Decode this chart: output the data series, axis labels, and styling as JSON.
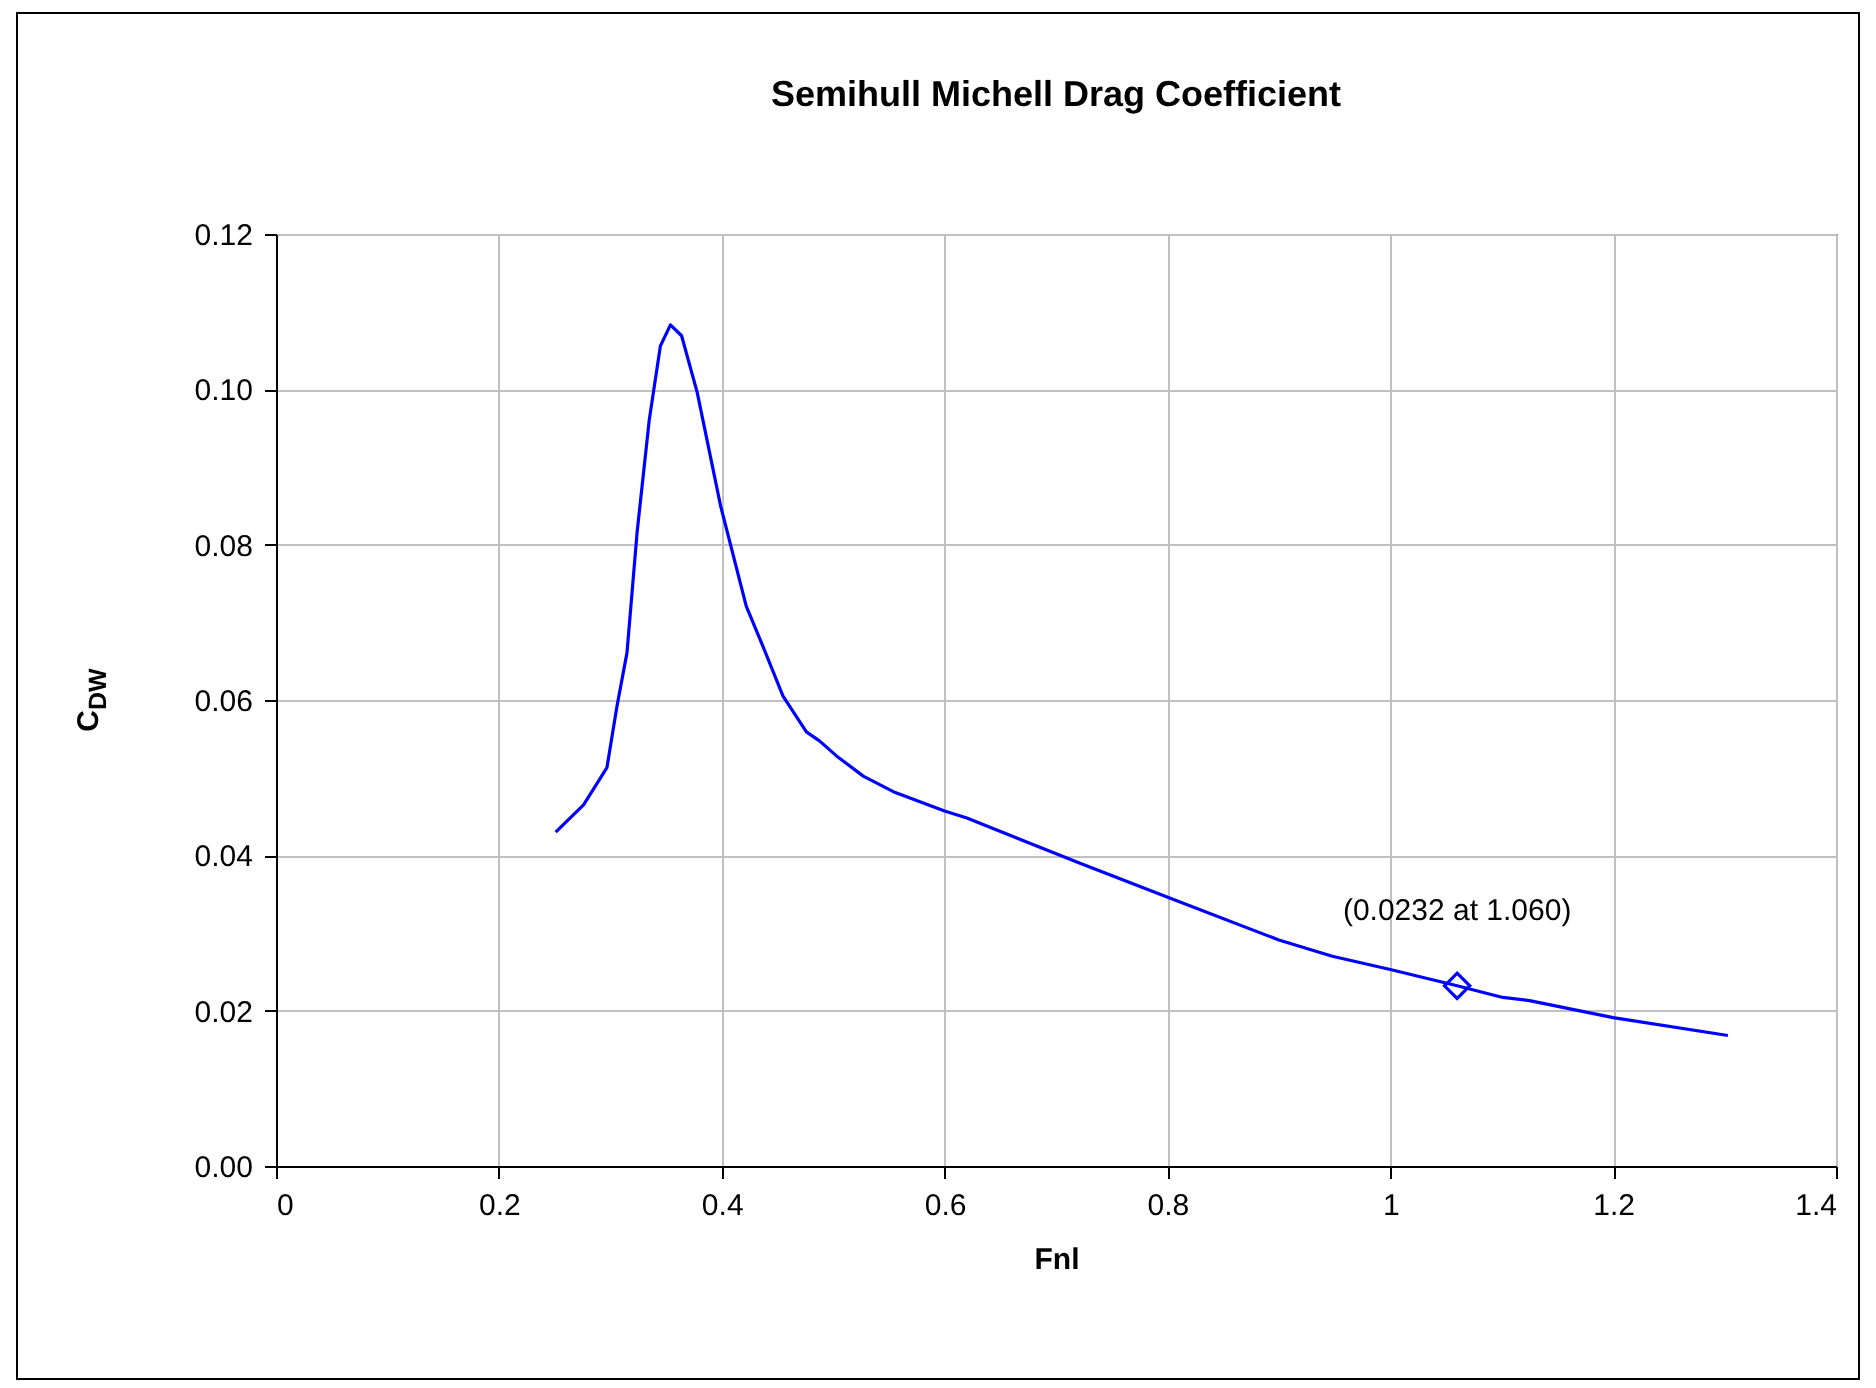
{
  "chart_data": {
    "type": "line",
    "title": "Semihull Michell Drag Coefficient",
    "xlabel": "Fnl",
    "ylabel": "C$_{DW}$",
    "xlim": [
      0,
      1.4
    ],
    "xticks": [
      0,
      0.2,
      0.4,
      0.6,
      0.8,
      1,
      1.2,
      1.4
    ],
    "ylim": [
      0,
      0.12
    ],
    "yticks": [
      {
        "value": 0,
        "label": "0.00"
      },
      {
        "value": 0.02,
        "label": "0.02"
      },
      {
        "value": 0.04,
        "label": "0.04"
      },
      {
        "value": 0.06,
        "label": "0.06"
      },
      {
        "value": 0.08,
        "label": "0.08"
      },
      {
        "value": 0.1,
        "label": "0.10"
      },
      {
        "value": 0.12,
        "label": "0.12"
      }
    ],
    "grid": true,
    "line_style": "solid",
    "series": [
      {
        "color": "#0000ff",
        "marker": "none",
        "x": [
          0.251,
          0.276,
          0.297,
          0.306,
          0.315,
          0.324,
          0.335,
          0.345,
          0.354,
          0.364,
          0.378,
          0.399,
          0.422,
          0.437,
          0.455,
          0.476,
          0.488,
          0.503,
          0.527,
          0.554,
          0.6,
          0.62,
          0.721,
          0.802,
          0.9,
          0.948,
          1.0,
          1.06,
          1.101,
          1.125,
          1.2,
          1.303
        ],
        "values": [
          0.043,
          0.0465,
          0.0513,
          0.0592,
          0.0661,
          0.0815,
          0.0961,
          0.1056,
          0.1083,
          0.1069,
          0.0996,
          0.085,
          0.0721,
          0.0669,
          0.0605,
          0.0559,
          0.0547,
          0.0528,
          0.0502,
          0.0482,
          0.0457,
          0.0448,
          0.039,
          0.0345,
          0.0291,
          0.027,
          0.0253,
          0.0232,
          0.0217,
          0.0213,
          0.0191,
          0.0168
        ]
      },
      {
        "type": "scatter",
        "color": "#0000ff",
        "marker": "diamond",
        "x": [
          1.06
        ],
        "values": [
          0.0232
        ]
      }
    ],
    "annotations": [
      {
        "text": "(0.0232 at 1.060)",
        "x": 1.06,
        "y": 0.0232
      }
    ]
  }
}
